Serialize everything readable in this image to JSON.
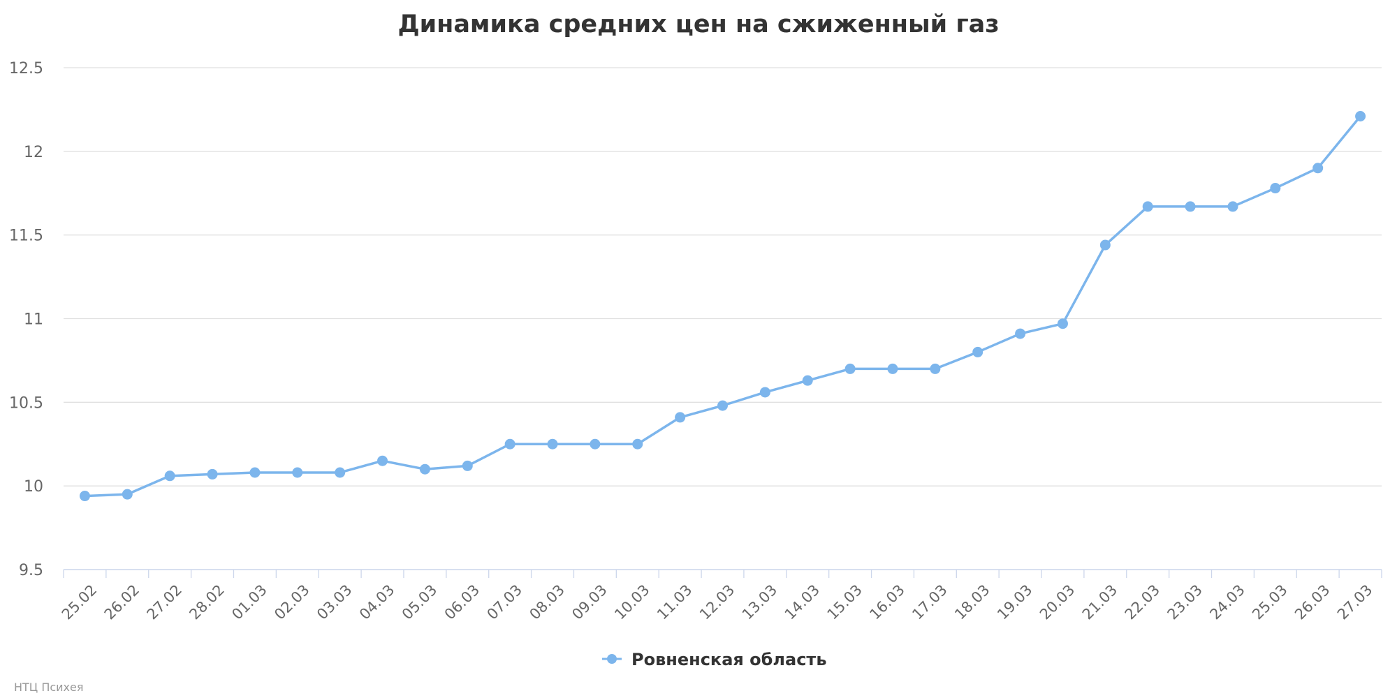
{
  "chart_data": {
    "type": "line",
    "title": "Динамика средних цен на сжиженный газ",
    "xlabel": "",
    "ylabel": "",
    "ylim": [
      9.5,
      12.5
    ],
    "yticks": [
      "9.5",
      "10",
      "10.5",
      "11",
      "11.5",
      "12",
      "12.5"
    ],
    "grid": true,
    "legend_position": "bottom-center",
    "categories": [
      "25.02",
      "26.02",
      "27.02",
      "28.02",
      "01.03",
      "02.03",
      "03.03",
      "04.03",
      "05.03",
      "06.03",
      "07.03",
      "08.03",
      "09.03",
      "10.03",
      "11.03",
      "12.03",
      "13.03",
      "14.03",
      "15.03",
      "16.03",
      "17.03",
      "18.03",
      "19.03",
      "20.03",
      "21.03",
      "22.03",
      "23.03",
      "24.03",
      "25.03",
      "26.03",
      "27.03"
    ],
    "series": [
      {
        "name": "Ровненская область",
        "color": "#7cb5ec",
        "values": [
          9.94,
          9.95,
          10.06,
          10.07,
          10.08,
          10.08,
          10.08,
          10.15,
          10.1,
          10.12,
          10.25,
          10.25,
          10.25,
          10.25,
          10.41,
          10.48,
          10.56,
          10.63,
          10.7,
          10.7,
          10.7,
          10.8,
          10.91,
          10.97,
          11.44,
          11.67,
          11.67,
          11.67,
          11.78,
          11.9,
          12.21
        ]
      }
    ]
  },
  "credit": "НТЦ Психея"
}
